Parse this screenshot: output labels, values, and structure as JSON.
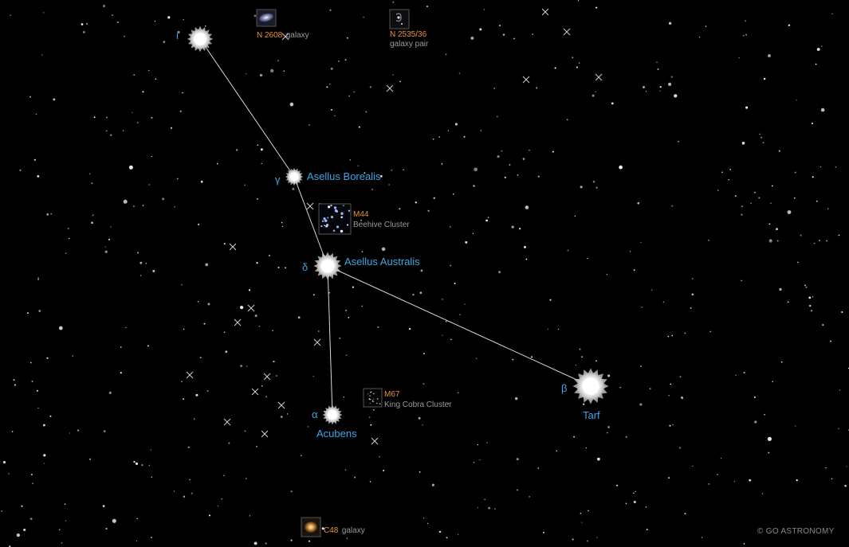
{
  "stars": {
    "iota": {
      "symbol": "ι",
      "name": ""
    },
    "gamma": {
      "symbol": "γ",
      "name": "Asellus Borealis"
    },
    "delta": {
      "symbol": "δ",
      "name": "Asellus Australis"
    },
    "alpha": {
      "symbol": "α",
      "name": "Acubens"
    },
    "beta": {
      "symbol": "β",
      "name": "Tarf"
    }
  },
  "deep_sky_objects": {
    "n2608": {
      "id": "N 2608",
      "type": "galaxy"
    },
    "n2535": {
      "id": "N 2535/36",
      "type": "galaxy pair"
    },
    "m44": {
      "id": "M44",
      "type": "Beehive Cluster"
    },
    "m67": {
      "id": "M67",
      "type": "King Cobra Cluster"
    },
    "c48": {
      "id": "C48",
      "type": "galaxy"
    }
  },
  "copyright": "© GO ASTRONOMY",
  "colors": {
    "background": "#000000",
    "star_label": "#3ea6e6",
    "object_id": "#e8933a",
    "object_type": "#9a9a9a",
    "constellation_line": "#d8d8d8"
  }
}
